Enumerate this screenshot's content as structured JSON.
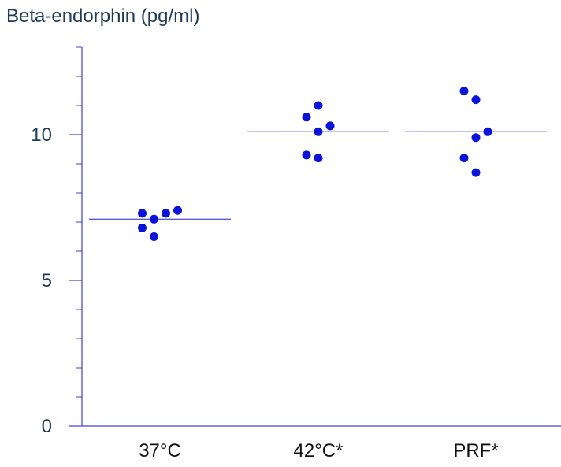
{
  "chart_data": {
    "type": "scatter",
    "title": "",
    "ylabel": "Beta-endorphin (pg/ml)",
    "xlabel": "",
    "ylim": [
      0,
      13
    ],
    "y_major_ticks": [
      0,
      5,
      10
    ],
    "y_minor_step": 1,
    "categories": [
      "37°C",
      "42°C*",
      "PRF*"
    ],
    "grid": false,
    "colors": {
      "points": "#0a14d8",
      "mean_line": "#5a5ae0",
      "axis": "#4040d0",
      "text": "#1f3b57"
    },
    "groups": [
      {
        "category": "37°C",
        "mean": 7.1,
        "points": [
          {
            "x_offset": -0.3,
            "y": 7.3
          },
          {
            "x_offset": -0.3,
            "y": 6.8
          },
          {
            "x_offset": -0.1,
            "y": 7.1
          },
          {
            "x_offset": -0.1,
            "y": 6.5
          },
          {
            "x_offset": 0.1,
            "y": 7.3
          },
          {
            "x_offset": 0.3,
            "y": 7.4
          }
        ]
      },
      {
        "category": "42°C*",
        "mean": 10.1,
        "points": [
          {
            "x_offset": -0.2,
            "y": 10.6
          },
          {
            "x_offset": -0.2,
            "y": 9.3
          },
          {
            "x_offset": 0.0,
            "y": 11.0
          },
          {
            "x_offset": 0.0,
            "y": 10.1
          },
          {
            "x_offset": 0.0,
            "y": 9.2
          },
          {
            "x_offset": 0.2,
            "y": 10.3
          }
        ]
      },
      {
        "category": "PRF*",
        "mean": 10.1,
        "points": [
          {
            "x_offset": -0.2,
            "y": 11.5
          },
          {
            "x_offset": -0.2,
            "y": 9.2
          },
          {
            "x_offset": 0.0,
            "y": 11.2
          },
          {
            "x_offset": 0.0,
            "y": 9.9
          },
          {
            "x_offset": 0.0,
            "y": 8.7
          },
          {
            "x_offset": 0.2,
            "y": 10.1
          }
        ]
      }
    ]
  }
}
